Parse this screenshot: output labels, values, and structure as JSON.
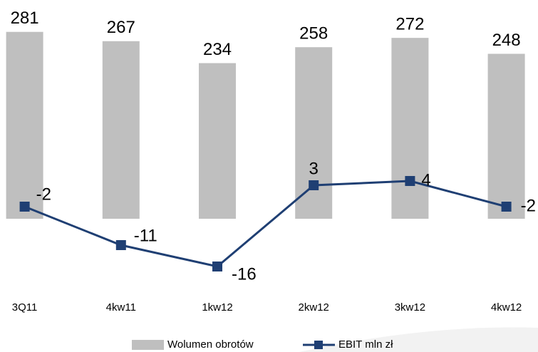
{
  "chart_data": {
    "type": "bar_line",
    "categories": [
      "3Q11",
      "4kw11",
      "1kw12",
      "2kw12",
      "3kw12",
      "4kw12"
    ],
    "series": [
      {
        "name": "Wolumen obrotów",
        "type": "bar",
        "color": "#bfbfbf",
        "values": [
          281,
          267,
          234,
          258,
          272,
          248
        ]
      },
      {
        "name": "EBIT mln zł",
        "type": "line",
        "axis": "y2",
        "color": "#1f3f73",
        "values": [
          -2,
          -11,
          -16,
          3,
          4,
          -2
        ]
      }
    ],
    "ylim": [
      0,
      300
    ],
    "y2lim": [
      -20,
      10
    ],
    "grid": false,
    "legend": "bottom"
  }
}
